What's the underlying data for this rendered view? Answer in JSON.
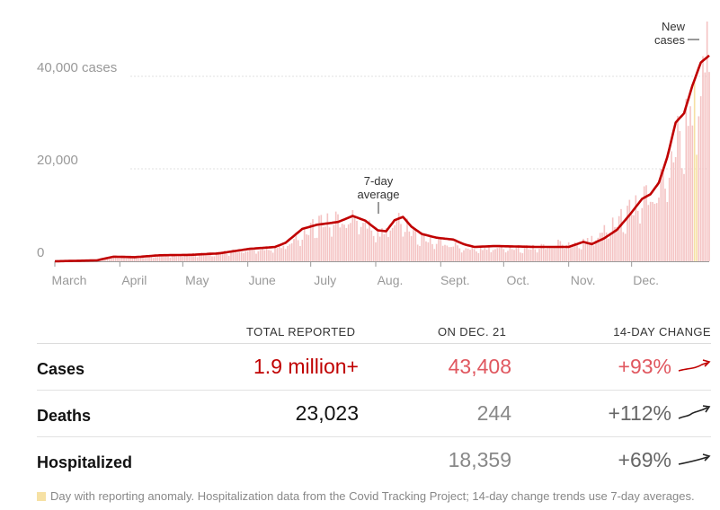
{
  "chart_data": {
    "type": "bar",
    "title": "",
    "y_tick_labels": [
      "40,000 cases",
      "20,000",
      "0"
    ],
    "y_tick_values": [
      40000,
      20000,
      0
    ],
    "ylim": [
      0,
      52000
    ],
    "months": [
      "March",
      "April",
      "May",
      "June",
      "July",
      "Aug.",
      "Sept.",
      "Oct.",
      "Nov.",
      "Dec."
    ],
    "grid": true,
    "series": [
      {
        "name": "New cases",
        "type": "bar",
        "anchors_day_value": [
          [
            0,
            0
          ],
          [
            10,
            100
          ],
          [
            20,
            400
          ],
          [
            28,
            1000
          ],
          [
            38,
            1100
          ],
          [
            50,
            1300
          ],
          [
            65,
            1500
          ],
          [
            78,
            1800
          ],
          [
            93,
            2600
          ],
          [
            108,
            3500
          ],
          [
            115,
            5000
          ],
          [
            125,
            8500
          ],
          [
            135,
            9300
          ],
          [
            144,
            10000
          ],
          [
            150,
            8500
          ],
          [
            155,
            6500
          ],
          [
            160,
            8500
          ],
          [
            165,
            9500
          ],
          [
            172,
            6000
          ],
          [
            180,
            4500
          ],
          [
            188,
            4000
          ],
          [
            195,
            3000
          ],
          [
            210,
            3200
          ],
          [
            225,
            3000
          ],
          [
            235,
            3300
          ],
          [
            243,
            4500
          ],
          [
            248,
            3800
          ],
          [
            258,
            6000
          ],
          [
            268,
            9000
          ],
          [
            278,
            13000
          ],
          [
            284,
            15000
          ],
          [
            288,
            16000
          ],
          [
            293,
            22000
          ],
          [
            298,
            30000
          ],
          [
            303,
            35000
          ],
          [
            308,
            45000
          ],
          [
            312,
            50000
          ]
        ]
      },
      {
        "name": "7-day average",
        "type": "line",
        "anchors_day_value": [
          [
            0,
            0
          ],
          [
            20,
            200
          ],
          [
            28,
            1000
          ],
          [
            38,
            900
          ],
          [
            50,
            1300
          ],
          [
            65,
            1400
          ],
          [
            78,
            1700
          ],
          [
            93,
            2700
          ],
          [
            105,
            3100
          ],
          [
            110,
            4000
          ],
          [
            118,
            7000
          ],
          [
            125,
            7900
          ],
          [
            135,
            8500
          ],
          [
            142,
            9800
          ],
          [
            148,
            8800
          ],
          [
            154,
            6700
          ],
          [
            158,
            6500
          ],
          [
            162,
            8900
          ],
          [
            166,
            9600
          ],
          [
            170,
            7500
          ],
          [
            175,
            5900
          ],
          [
            182,
            5100
          ],
          [
            190,
            4700
          ],
          [
            195,
            3700
          ],
          [
            200,
            3100
          ],
          [
            210,
            3300
          ],
          [
            230,
            3100
          ],
          [
            245,
            3100
          ],
          [
            252,
            4200
          ],
          [
            256,
            3700
          ],
          [
            262,
            5000
          ],
          [
            268,
            6800
          ],
          [
            274,
            10000
          ],
          [
            280,
            13500
          ],
          [
            284,
            14500
          ],
          [
            288,
            17000
          ],
          [
            292,
            22500
          ],
          [
            296,
            30000
          ],
          [
            300,
            32000
          ],
          [
            304,
            38000
          ],
          [
            308,
            43000
          ],
          [
            312,
            44500
          ]
        ]
      }
    ],
    "annotations": {
      "average_label": "7-day average",
      "new_cases_label": "New cases"
    }
  },
  "stats": {
    "headers": {
      "total": "TOTAL REPORTED",
      "on_day": "ON DEC. 21",
      "change": "14-DAY CHANGE"
    },
    "rows": [
      {
        "label": "Cases",
        "total": "1.9 million+",
        "on_day": "43,408",
        "change": "+93%"
      },
      {
        "label": "Deaths",
        "total": "23,023",
        "on_day": "244",
        "change": "+112%"
      },
      {
        "label": "Hospitalized",
        "total": "",
        "on_day": "18,359",
        "change": "+69%"
      }
    ]
  },
  "colors": {
    "bar": "#f4c3c3",
    "line": "#c00000",
    "anomaly": "#f6e1a4",
    "grid": "#e0e0e0"
  },
  "footnote": "Day with reporting anomaly. Hospitalization data from the Covid Tracking Project; 14-day change trends use 7-day averages."
}
